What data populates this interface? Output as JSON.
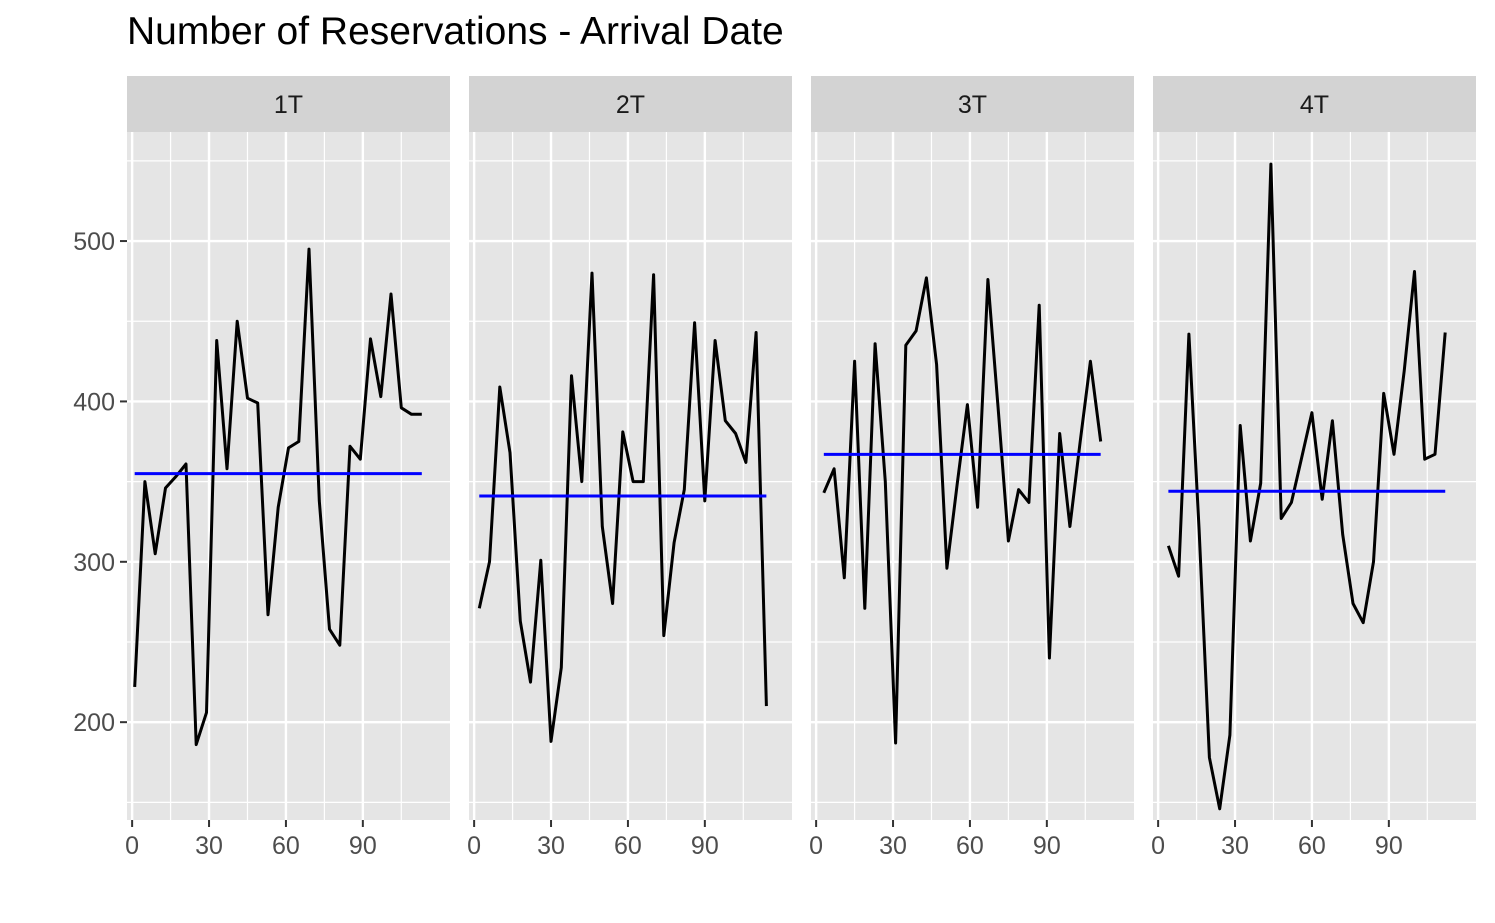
{
  "chart_data": {
    "type": "line",
    "title": "Number of Reservations - Arrival Date",
    "xlabel": "",
    "ylabel": "",
    "facet_by": "quarter",
    "xlim": [
      -2,
      124
    ],
    "ylim": [
      139,
      568
    ],
    "x_ticks": [
      0,
      30,
      60,
      90
    ],
    "y_ticks": [
      200,
      300,
      400,
      500
    ],
    "grid": true,
    "colors": {
      "panel_background": "#e5e5e5",
      "strip_background": "#d3d3d3",
      "grid": "#ffffff",
      "series_line": "#000000",
      "mean_line": "#0000ff"
    },
    "panels": [
      {
        "label": "1T",
        "mean": 355,
        "mean_x_range": [
          1,
          113
        ],
        "x": [
          1,
          5,
          9,
          13,
          17,
          21,
          25,
          29,
          33,
          37,
          41,
          45,
          49,
          53,
          57,
          61,
          65,
          69,
          73,
          77,
          81,
          85,
          89,
          93,
          97,
          101,
          105,
          109,
          113
        ],
        "y": [
          222,
          350,
          305,
          346,
          353,
          361,
          186,
          206,
          438,
          358,
          450,
          402,
          399,
          267,
          334,
          371,
          375,
          495,
          338,
          258,
          248,
          372,
          364,
          439,
          403,
          467,
          396,
          392,
          392
        ]
      },
      {
        "label": "2T",
        "mean": 341,
        "mean_x_range": [
          2,
          114
        ],
        "x": [
          2,
          6,
          10,
          14,
          18,
          22,
          26,
          30,
          34,
          38,
          42,
          46,
          50,
          54,
          58,
          62,
          66,
          70,
          74,
          78,
          82,
          86,
          90,
          94,
          98,
          102,
          106,
          110,
          114
        ],
        "y": [
          271,
          300,
          409,
          368,
          263,
          225,
          301,
          188,
          234,
          416,
          350,
          480,
          322,
          274,
          381,
          350,
          350,
          479,
          254,
          312,
          345,
          449,
          338,
          438,
          388,
          380,
          362,
          443,
          210
        ]
      },
      {
        "label": "3T",
        "mean": 367,
        "mean_x_range": [
          3,
          111
        ],
        "x": [
          3,
          7,
          11,
          15,
          19,
          23,
          27,
          31,
          35,
          39,
          43,
          47,
          51,
          55,
          59,
          63,
          67,
          71,
          75,
          79,
          83,
          87,
          91,
          95,
          99,
          103,
          107,
          111
        ],
        "y": [
          343,
          358,
          290,
          425,
          271,
          436,
          350,
          187,
          435,
          444,
          477,
          423,
          296,
          348,
          398,
          334,
          476,
          396,
          313,
          345,
          337,
          460,
          240,
          380,
          322,
          375,
          425,
          375
        ]
      },
      {
        "label": "4T",
        "mean": 344,
        "mean_x_range": [
          4,
          112
        ],
        "x": [
          4,
          8,
          12,
          16,
          20,
          24,
          28,
          32,
          36,
          40,
          44,
          48,
          52,
          56,
          60,
          64,
          68,
          72,
          76,
          80,
          84,
          88,
          92,
          96,
          100,
          104,
          108,
          112
        ],
        "y": [
          310,
          291,
          442,
          320,
          178,
          146,
          192,
          385,
          313,
          349,
          548,
          327,
          337,
          365,
          393,
          339,
          388,
          317,
          274,
          262,
          300,
          405,
          367,
          419,
          481,
          364,
          367,
          443
        ]
      }
    ]
  }
}
